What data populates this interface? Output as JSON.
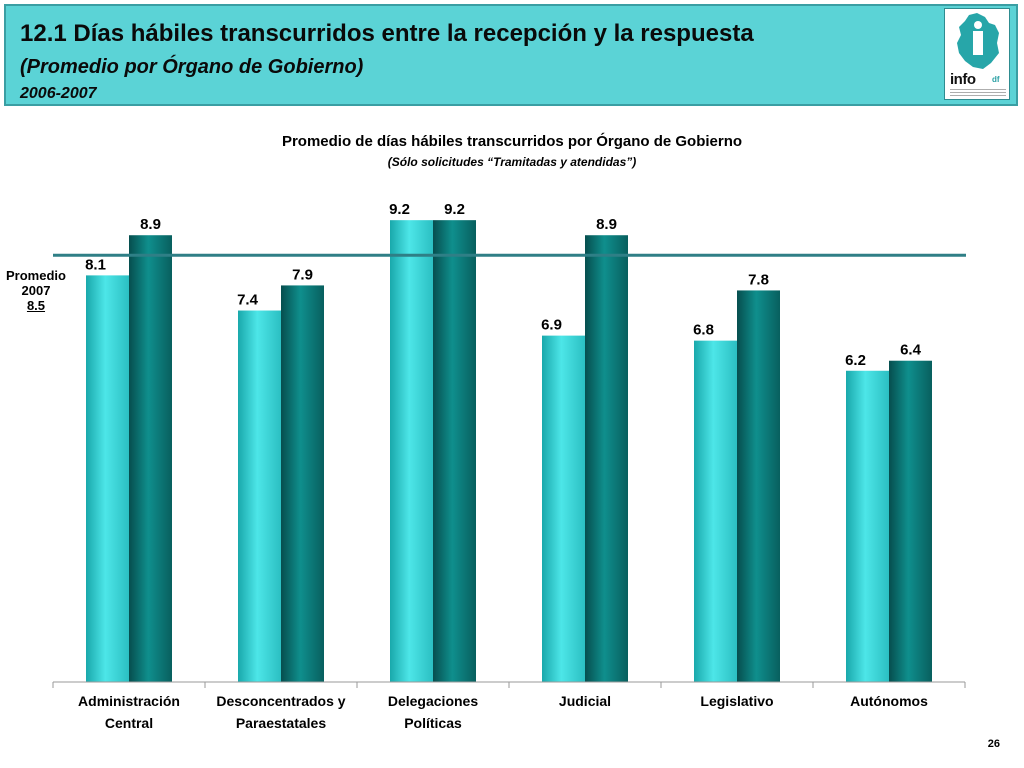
{
  "header": {
    "title": "12.1 Días hábiles transcurridos entre la recepción y la respuesta",
    "subtitle": "(Promedio por Órgano de Gobierno)",
    "years": "2006-2007",
    "logo_text": "info",
    "logo_suffix": "df"
  },
  "reference": {
    "label_line1": "Promedio",
    "label_line2": "2007",
    "value": "8.5"
  },
  "page_number": "26",
  "colors": {
    "header_bg": "#5bd3d6",
    "series_2006": "#3fd6d8",
    "series_2007": "#0b8a88",
    "reference_line": "#2f7f86"
  },
  "chart_data": {
    "type": "bar",
    "title": "Promedio de días hábiles transcurridos por Órgano de Gobierno",
    "subtitle": "(Sólo solicitudes “Tramitadas y atendidas”)",
    "categories": [
      [
        "Administración",
        "Central"
      ],
      [
        "Desconcentrados y",
        "Paraestatales"
      ],
      [
        "Delegaciones",
        "Políticas"
      ],
      [
        "Judicial"
      ],
      [
        "Legislativo"
      ],
      [
        "Autónomos"
      ]
    ],
    "series": [
      {
        "values": [
          8.1,
          7.4,
          9.2,
          6.9,
          6.8,
          6.2
        ],
        "value_labels": [
          "8.1",
          "7.4",
          "9.2",
          "6.9",
          "6.8",
          "6.2"
        ]
      },
      {
        "values": [
          8.9,
          7.9,
          9.2,
          8.9,
          7.8,
          6.4
        ],
        "value_labels": [
          "8.9",
          "7.9",
          "9.2",
          "8.9",
          "7.8",
          "6.4"
        ]
      }
    ],
    "reference_line": 8.5,
    "ylim": [
      0,
      10
    ],
    "grid": false,
    "legend": "none"
  }
}
